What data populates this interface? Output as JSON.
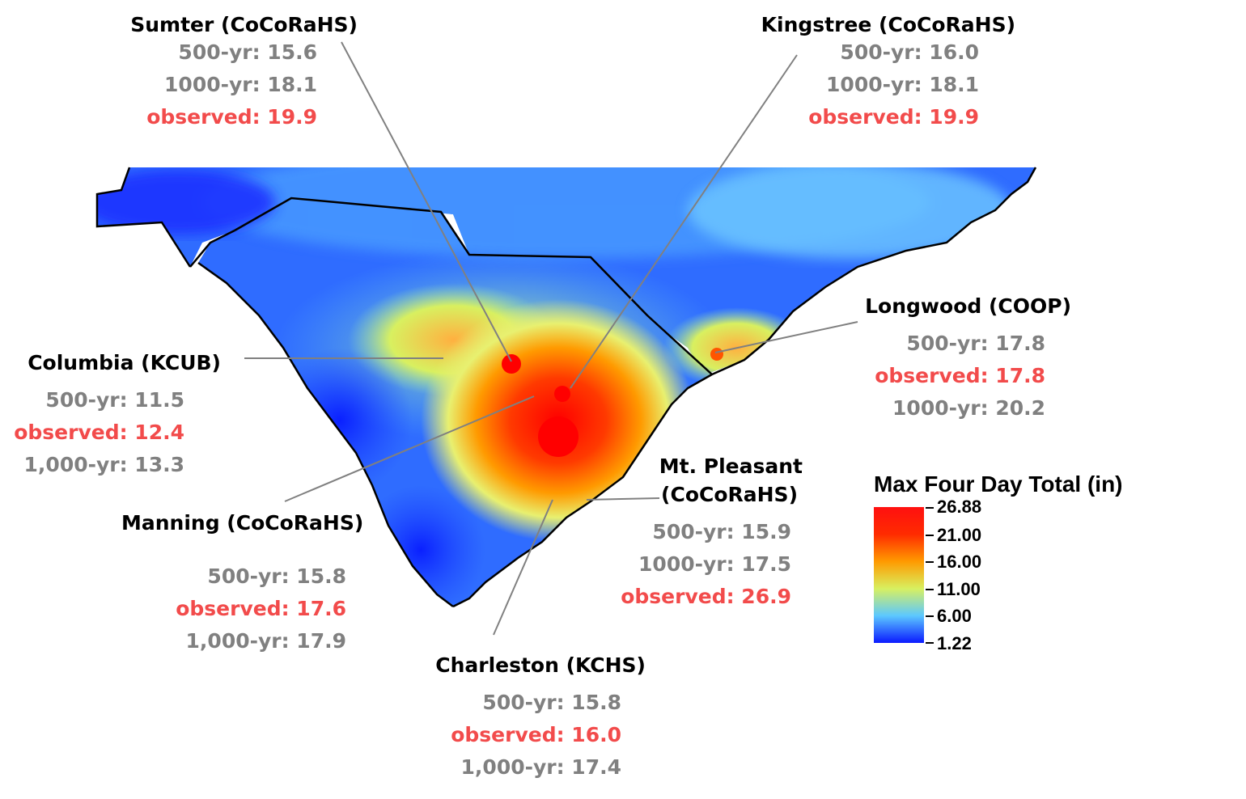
{
  "legend": {
    "title": "Max Four Day Total (in)",
    "ticks": [
      "26.88",
      "21.00",
      "16.00",
      "11.00",
      "6.00",
      "1.22"
    ],
    "colors": [
      "#ff1010",
      "#ff9a00",
      "#d8f060",
      "#5cc8ff",
      "#0a1aff"
    ]
  },
  "stations": {
    "sumter": {
      "name": "Sumter (CoCoRaHS)",
      "rows": [
        "500-yr:  15.6",
        "1000-yr:  18.1",
        "observed:  19.9"
      ]
    },
    "kingstree": {
      "name": "Kingstree (CoCoRaHS)",
      "rows": [
        "500-yr:  16.0",
        "1000-yr:  18.1",
        "observed:  19.9"
      ]
    },
    "longwood": {
      "name": "Longwood (COOP)",
      "rows": [
        "500-yr:  17.8",
        "observed:  17.8",
        "1000-yr:  20.2"
      ]
    },
    "columbia": {
      "name": "Columbia (KCUB)",
      "rows": [
        "500-yr:  11.5",
        "observed: 12.4",
        "1,000-yr:  13.3"
      ]
    },
    "manning": {
      "name": "Manning (CoCoRaHS)",
      "rows": [
        "500-yr:  15.8",
        "observed:  17.6",
        "1,000-yr:  17.9"
      ]
    },
    "mtpleasant": {
      "name1": "Mt. Pleasant",
      "name2": "(CoCoRaHS)",
      "rows": [
        "500-yr:  15.9",
        "1000-yr:  17.5",
        "observed:  26.9"
      ]
    },
    "charleston": {
      "name": "Charleston (KCHS)",
      "rows": [
        "500-yr:  15.8",
        "observed:  16.0",
        "1,000-yr:  17.4"
      ]
    }
  },
  "colors": {
    "observed": "#f24b4b",
    "return_period": "#808080",
    "leader_line": "#808080"
  }
}
